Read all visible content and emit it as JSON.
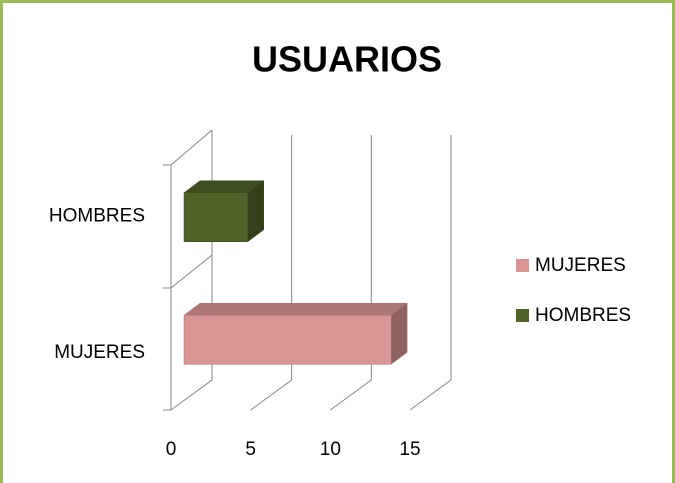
{
  "chart_data": {
    "type": "bar3d",
    "title": "USUARIOS",
    "categories": [
      "MUJERES",
      "HOMBRES"
    ],
    "values": [
      13,
      4
    ],
    "colors": [
      "#d99694",
      "#4f6228"
    ],
    "xlim": [
      0,
      15
    ],
    "xticks": [
      0,
      5,
      10,
      15
    ],
    "grid": true,
    "legend": "right"
  }
}
